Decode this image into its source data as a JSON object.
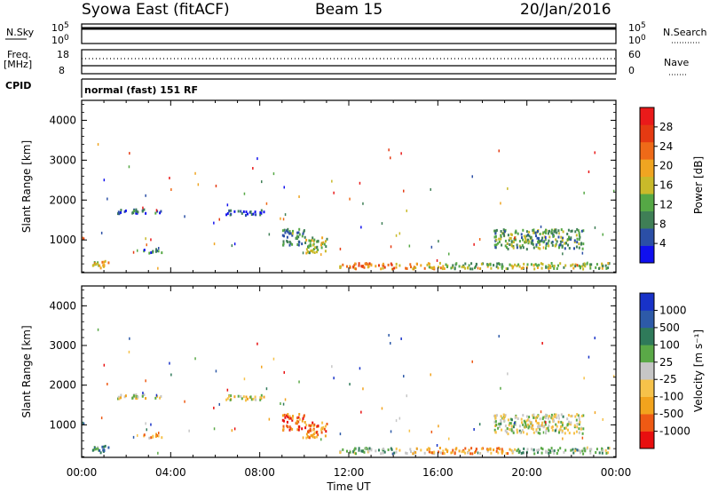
{
  "header": {
    "station": "Syowa East (fitACF)",
    "beam": "Beam 15",
    "date": "20/Jan/2016"
  },
  "panels": {
    "nsky": {
      "left_label": "N.Sky",
      "right_label": "N.Search",
      "ytick_top": "10^5",
      "ytick_bottom": "10^0"
    },
    "freq": {
      "left_label_1": "Freq.",
      "left_label_2": "[MHz]",
      "right_label": "Nave",
      "ytick_left_top": "18",
      "ytick_left_bottom": "8",
      "ytick_right_top": "60",
      "ytick_right_bottom": "0"
    },
    "cpid": {
      "label": "CPID",
      "text": "normal (fast) 151 RF"
    }
  },
  "colors": {
    "power": [
      "#1010ee",
      "#2b4fa6",
      "#3f7f56",
      "#55a845",
      "#c9ba2a",
      "#f0a521",
      "#ee6a18",
      "#e53a12",
      "#ea1a1a"
    ],
    "velocity": [
      "#e80f0f",
      "#ee5a14",
      "#f2a31d",
      "#f6c24a",
      "#c6c6c6",
      "#5aa947",
      "#2f7a5a",
      "#2d5aa8",
      "#1832c8"
    ]
  },
  "chart_data": [
    {
      "type": "heatmap",
      "quantity": "Power",
      "ylabel": "Slant Range [km]",
      "ylim": [
        180,
        4500
      ],
      "yticks": [
        "1000",
        "2000",
        "3000",
        "4000"
      ],
      "xticks": [
        "00:00",
        "04:00",
        "08:00",
        "12:00",
        "16:00",
        "20:00",
        "00:00"
      ],
      "colorbar": {
        "label": "Power [dB]",
        "ticks": [
          "4",
          "8",
          "12",
          "16",
          "20",
          "24",
          "28"
        ],
        "range": [
          0,
          30
        ]
      },
      "regions": [
        {
          "t0": 0.3,
          "t1": 1.2,
          "r0": 300,
          "r1": 500,
          "level": 0.55
        },
        {
          "t0": 1.5,
          "t1": 3.6,
          "r0": 1680,
          "r1": 1800,
          "level": 0.2
        },
        {
          "t0": 2.6,
          "t1": 3.6,
          "r0": 700,
          "r1": 800,
          "level": 0.25
        },
        {
          "t0": 6.4,
          "t1": 8.2,
          "r0": 1650,
          "r1": 1780,
          "level": 0.15
        },
        {
          "t0": 9.0,
          "t1": 10.0,
          "r0": 900,
          "r1": 1300,
          "level": 0.3
        },
        {
          "t0": 10.0,
          "t1": 11.0,
          "r0": 700,
          "r1": 1100,
          "level": 0.45
        },
        {
          "t0": 11.5,
          "t1": 14.3,
          "r0": 300,
          "r1": 450,
          "level": 0.7
        },
        {
          "t0": 14.5,
          "t1": 16.3,
          "r0": 300,
          "r1": 450,
          "level": 0.6
        },
        {
          "t0": 16.3,
          "t1": 19.5,
          "r0": 300,
          "r1": 450,
          "level": 0.4
        },
        {
          "t0": 18.5,
          "t1": 22.5,
          "r0": 800,
          "r1": 1300,
          "level": 0.35
        },
        {
          "t0": 19.5,
          "t1": 23.8,
          "r0": 300,
          "r1": 450,
          "level": 0.45
        }
      ]
    },
    {
      "type": "heatmap",
      "quantity": "Velocity",
      "ylabel": "Slant Range [km]",
      "xlabel": "Time UT",
      "ylim": [
        180,
        4500
      ],
      "yticks": [
        "1000",
        "2000",
        "3000",
        "4000"
      ],
      "xticks": [
        "00:00",
        "04:00",
        "08:00",
        "12:00",
        "16:00",
        "20:00",
        "00:00"
      ],
      "colorbar": {
        "label": "Velocity [m s⁻¹]",
        "ticks": [
          "-1000",
          "-500",
          "-100",
          "-25",
          "25",
          "100",
          "500",
          "1000"
        ],
        "range": [
          -1200,
          1200
        ]
      },
      "regions": [
        {
          "t0": 0.3,
          "t1": 1.2,
          "r0": 300,
          "r1": 500,
          "level": 0.7
        },
        {
          "t0": 1.5,
          "t1": 3.6,
          "r0": 1680,
          "r1": 1800,
          "level": 0.45
        },
        {
          "t0": 2.6,
          "t1": 3.6,
          "r0": 700,
          "r1": 800,
          "level": 0.3
        },
        {
          "t0": 6.4,
          "t1": 8.2,
          "r0": 1650,
          "r1": 1780,
          "level": 0.45
        },
        {
          "t0": 9.0,
          "t1": 10.0,
          "r0": 900,
          "r1": 1300,
          "level": 0.2
        },
        {
          "t0": 10.0,
          "t1": 11.0,
          "r0": 700,
          "r1": 1100,
          "level": 0.25
        },
        {
          "t0": 11.5,
          "t1": 14.3,
          "r0": 300,
          "r1": 450,
          "level": 0.6
        },
        {
          "t0": 14.5,
          "t1": 16.3,
          "r0": 300,
          "r1": 450,
          "level": 0.35
        },
        {
          "t0": 16.3,
          "t1": 19.5,
          "r0": 300,
          "r1": 450,
          "level": 0.3
        },
        {
          "t0": 18.5,
          "t1": 22.5,
          "r0": 800,
          "r1": 1300,
          "level": 0.5
        },
        {
          "t0": 19.5,
          "t1": 23.8,
          "r0": 300,
          "r1": 450,
          "level": 0.6
        }
      ]
    }
  ]
}
